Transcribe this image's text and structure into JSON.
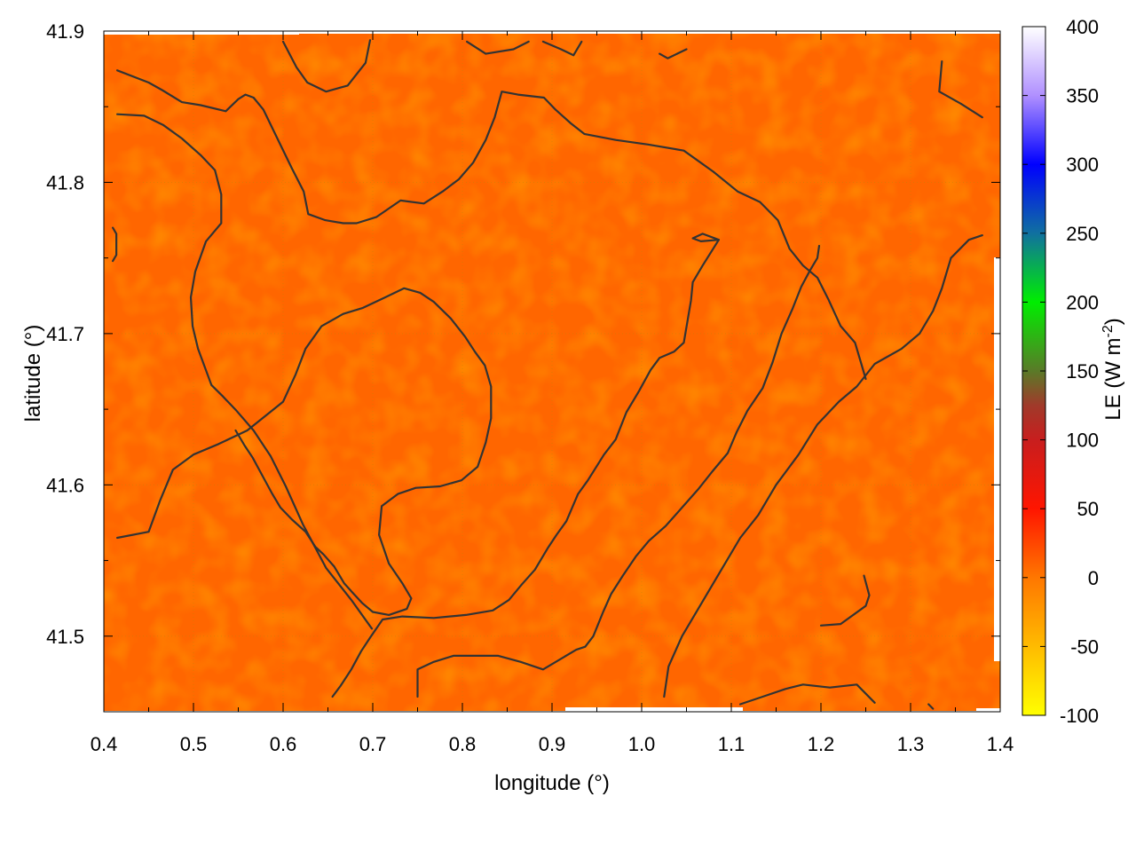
{
  "chart_data": {
    "type": "heatmap",
    "title": "",
    "xlabel": "longitude (°)",
    "ylabel": "latitude (°)",
    "xlim": [
      0.4,
      1.4
    ],
    "ylim": [
      41.45,
      41.9
    ],
    "x_ticks": [
      {
        "value": 0.4,
        "label": "0.4"
      },
      {
        "value": 0.5,
        "label": "0.5"
      },
      {
        "value": 0.6,
        "label": "0.6"
      },
      {
        "value": 0.7,
        "label": "0.7"
      },
      {
        "value": 0.8,
        "label": "0.8"
      },
      {
        "value": 0.9,
        "label": "0.9"
      },
      {
        "value": 1.0,
        "label": "1.0"
      },
      {
        "value": 1.1,
        "label": "1.1"
      },
      {
        "value": 1.2,
        "label": "1.2"
      },
      {
        "value": 1.3,
        "label": "1.3"
      },
      {
        "value": 1.4,
        "label": "1.4"
      }
    ],
    "y_ticks": [
      {
        "value": 41.5,
        "label": "41.5"
      },
      {
        "value": 41.6,
        "label": "41.6"
      },
      {
        "value": 41.7,
        "label": "41.7"
      },
      {
        "value": 41.8,
        "label": "41.8"
      },
      {
        "value": 41.9,
        "label": "41.9"
      }
    ],
    "grid": true,
    "colorbar": {
      "label_main": "LE (W m",
      "label_exp": "-2",
      "label_close": ")",
      "range": [
        -100,
        400
      ],
      "ticks": [
        {
          "value": 400,
          "label": "400"
        },
        {
          "value": 350,
          "label": "350"
        },
        {
          "value": 300,
          "label": "300"
        },
        {
          "value": 250,
          "label": "250"
        },
        {
          "value": 200,
          "label": "200"
        },
        {
          "value": 150,
          "label": "150"
        },
        {
          "value": 100,
          "label": "100"
        },
        {
          "value": 50,
          "label": "50"
        },
        {
          "value": 0,
          "label": "0"
        },
        {
          "value": -50,
          "label": "-50"
        },
        {
          "value": -100,
          "label": "-100"
        }
      ],
      "stops": [
        {
          "value": -100,
          "color": "#ffff00"
        },
        {
          "value": -50,
          "color": "#ffbb00"
        },
        {
          "value": 0,
          "color": "#ff7700"
        },
        {
          "value": 50,
          "color": "#ff1500"
        },
        {
          "value": 100,
          "color": "#c81e1e"
        },
        {
          "value": 125,
          "color": "#a03a2a"
        },
        {
          "value": 150,
          "color": "#5a7a28"
        },
        {
          "value": 200,
          "color": "#00ee00"
        },
        {
          "value": 250,
          "color": "#1070a0"
        },
        {
          "value": 300,
          "color": "#0000ff"
        },
        {
          "value": 350,
          "color": "#b090ff"
        },
        {
          "value": 400,
          "color": "#ffffff"
        }
      ]
    },
    "field": {
      "typical_value": 10,
      "range": [
        0,
        25
      ],
      "base_color": "#ff6600"
    },
    "contours": [
      [
        [
          0.415,
          41.874
        ],
        [
          0.45,
          41.866
        ],
        [
          0.465,
          41.861
        ],
        [
          0.487,
          41.853
        ],
        [
          0.508,
          41.851
        ],
        [
          0.536,
          41.847
        ],
        [
          0.55,
          41.855
        ],
        [
          0.558,
          41.858
        ],
        [
          0.567,
          41.856
        ],
        [
          0.578,
          41.848
        ],
        [
          0.596,
          41.826
        ],
        [
          0.61,
          41.809
        ],
        [
          0.623,
          41.794
        ],
        [
          0.628,
          41.779
        ],
        [
          0.647,
          41.775
        ],
        [
          0.667,
          41.773
        ],
        [
          0.682,
          41.773
        ],
        [
          0.704,
          41.777
        ],
        [
          0.731,
          41.788
        ],
        [
          0.757,
          41.786
        ],
        [
          0.778,
          41.794
        ],
        [
          0.796,
          41.802
        ],
        [
          0.812,
          41.813
        ],
        [
          0.826,
          41.828
        ],
        [
          0.836,
          41.843
        ],
        [
          0.844,
          41.86
        ],
        [
          0.862,
          41.858
        ],
        [
          0.891,
          41.856
        ],
        [
          0.904,
          41.848
        ],
        [
          0.921,
          41.839
        ],
        [
          0.936,
          41.832
        ],
        [
          0.971,
          41.828
        ],
        [
          1.007,
          41.825
        ],
        [
          1.047,
          41.821
        ],
        [
          1.08,
          41.807
        ],
        [
          1.107,
          41.794
        ],
        [
          1.132,
          41.787
        ],
        [
          1.152,
          41.775
        ],
        [
          1.165,
          41.756
        ],
        [
          1.18,
          41.745
        ],
        [
          1.196,
          41.737
        ],
        [
          1.208,
          41.723
        ],
        [
          1.222,
          41.705
        ],
        [
          1.238,
          41.694
        ],
        [
          1.245,
          41.68
        ],
        [
          1.25,
          41.67
        ]
      ],
      [
        [
          0.415,
          41.845
        ],
        [
          0.445,
          41.844
        ],
        [
          0.466,
          41.838
        ],
        [
          0.487,
          41.829
        ],
        [
          0.508,
          41.818
        ],
        [
          0.524,
          41.808
        ],
        [
          0.531,
          41.792
        ],
        [
          0.531,
          41.773
        ],
        [
          0.514,
          41.761
        ],
        [
          0.502,
          41.741
        ],
        [
          0.497,
          41.724
        ],
        [
          0.499,
          41.705
        ],
        [
          0.505,
          41.69
        ],
        [
          0.52,
          41.666
        ],
        [
          0.532,
          41.659
        ],
        [
          0.548,
          41.649
        ],
        [
          0.567,
          41.636
        ],
        [
          0.586,
          41.619
        ],
        [
          0.603,
          41.599
        ],
        [
          0.622,
          41.574
        ],
        [
          0.648,
          41.545
        ],
        [
          0.676,
          41.524
        ],
        [
          0.699,
          41.505
        ]
      ],
      [
        [
          0.415,
          41.565
        ],
        [
          0.45,
          41.569
        ],
        [
          0.463,
          41.59
        ],
        [
          0.477,
          41.61
        ],
        [
          0.5,
          41.62
        ],
        [
          0.528,
          41.627
        ],
        [
          0.56,
          41.636
        ],
        [
          0.579,
          41.645
        ],
        [
          0.6,
          41.655
        ],
        [
          0.614,
          41.673
        ],
        [
          0.625,
          41.69
        ],
        [
          0.643,
          41.705
        ],
        [
          0.667,
          41.713
        ],
        [
          0.689,
          41.717
        ],
        [
          0.714,
          41.724
        ],
        [
          0.735,
          41.73
        ],
        [
          0.753,
          41.727
        ],
        [
          0.768,
          41.721
        ],
        [
          0.787,
          41.71
        ],
        [
          0.803,
          41.698
        ],
        [
          0.814,
          41.688
        ],
        [
          0.825,
          41.679
        ],
        [
          0.832,
          41.665
        ],
        [
          0.832,
          41.644
        ],
        [
          0.826,
          41.628
        ],
        [
          0.817,
          41.612
        ],
        [
          0.799,
          41.603
        ],
        [
          0.775,
          41.599
        ],
        [
          0.748,
          41.598
        ],
        [
          0.728,
          41.594
        ],
        [
          0.71,
          41.586
        ],
        [
          0.707,
          41.567
        ],
        [
          0.718,
          41.548
        ],
        [
          0.733,
          41.535
        ],
        [
          0.743,
          41.525
        ],
        [
          0.738,
          41.518
        ],
        [
          0.718,
          41.514
        ],
        [
          0.7,
          41.516
        ],
        [
          0.688,
          41.522
        ],
        [
          0.677,
          41.529
        ],
        [
          0.668,
          41.535
        ],
        [
          0.657,
          41.546
        ],
        [
          0.645,
          41.554
        ],
        [
          0.636,
          41.559
        ],
        [
          0.625,
          41.569
        ],
        [
          0.61,
          41.577
        ],
        [
          0.597,
          41.585
        ],
        [
          0.587,
          41.595
        ],
        [
          0.576,
          41.607
        ],
        [
          0.566,
          41.618
        ],
        [
          0.557,
          41.626
        ],
        [
          0.547,
          41.636
        ]
      ],
      [
        [
          0.6,
          41.893
        ],
        [
          0.615,
          41.876
        ],
        [
          0.627,
          41.866
        ],
        [
          0.648,
          41.86
        ],
        [
          0.672,
          41.864
        ],
        [
          0.692,
          41.879
        ],
        [
          0.697,
          41.894
        ]
      ],
      [
        [
          0.805,
          41.893
        ],
        [
          0.826,
          41.885
        ],
        [
          0.857,
          41.888
        ],
        [
          0.874,
          41.893
        ]
      ],
      [
        [
          0.89,
          41.893
        ],
        [
          0.91,
          41.888
        ],
        [
          0.924,
          41.884
        ],
        [
          0.933,
          41.893
        ]
      ],
      [
        [
          1.02,
          41.885
        ],
        [
          1.029,
          41.882
        ],
        [
          1.05,
          41.888
        ]
      ],
      [
        [
          1.335,
          41.88
        ],
        [
          1.332,
          41.86
        ],
        [
          1.356,
          41.852
        ],
        [
          1.38,
          41.843
        ]
      ],
      [
        [
          0.41,
          41.77
        ],
        [
          0.414,
          41.766
        ],
        [
          0.414,
          41.752
        ],
        [
          0.41,
          41.748
        ]
      ],
      [
        [
          1.057,
          41.763
        ],
        [
          1.068,
          41.766
        ],
        [
          1.086,
          41.762
        ],
        [
          1.066,
          41.761
        ],
        [
          1.057,
          41.763
        ]
      ],
      [
        [
          0.75,
          41.46
        ],
        [
          0.75,
          41.478
        ],
        [
          0.768,
          41.483
        ],
        [
          0.79,
          41.487
        ],
        [
          0.84,
          41.487
        ],
        [
          0.865,
          41.483
        ],
        [
          0.89,
          41.478
        ],
        [
          0.91,
          41.485
        ],
        [
          0.927,
          41.491
        ],
        [
          0.937,
          41.493
        ],
        [
          0.946,
          41.5
        ],
        [
          0.957,
          41.516
        ],
        [
          0.966,
          41.528
        ],
        [
          0.979,
          41.54
        ],
        [
          0.994,
          41.553
        ],
        [
          1.008,
          41.563
        ],
        [
          1.027,
          41.573
        ],
        [
          1.045,
          41.585
        ],
        [
          1.063,
          41.597
        ],
        [
          1.079,
          41.609
        ],
        [
          1.096,
          41.621
        ],
        [
          1.106,
          41.635
        ],
        [
          1.118,
          41.649
        ],
        [
          1.135,
          41.664
        ],
        [
          1.146,
          41.681
        ],
        [
          1.156,
          41.7
        ],
        [
          1.168,
          41.716
        ],
        [
          1.178,
          41.731
        ],
        [
          1.188,
          41.742
        ],
        [
          1.196,
          41.75
        ],
        [
          1.198,
          41.758
        ]
      ],
      [
        [
          0.655,
          41.46
        ],
        [
          0.664,
          41.467
        ],
        [
          0.676,
          41.478
        ],
        [
          0.687,
          41.49
        ],
        [
          0.697,
          41.499
        ],
        [
          0.711,
          41.511
        ],
        [
          0.733,
          41.513
        ],
        [
          0.768,
          41.512
        ],
        [
          0.804,
          41.514
        ],
        [
          0.834,
          41.517
        ],
        [
          0.852,
          41.524
        ],
        [
          0.866,
          41.534
        ],
        [
          0.881,
          41.544
        ],
        [
          0.895,
          41.558
        ],
        [
          0.905,
          41.567
        ],
        [
          0.916,
          41.576
        ],
        [
          0.929,
          41.594
        ],
        [
          0.94,
          41.603
        ],
        [
          0.958,
          41.62
        ],
        [
          0.971,
          41.63
        ],
        [
          0.983,
          41.648
        ],
        [
          0.997,
          41.662
        ],
        [
          1.01,
          41.676
        ],
        [
          1.02,
          41.684
        ],
        [
          1.036,
          41.688
        ],
        [
          1.047,
          41.694
        ],
        [
          1.055,
          41.722
        ],
        [
          1.057,
          41.734
        ],
        [
          1.068,
          41.745
        ],
        [
          1.086,
          41.762
        ]
      ]
    ],
    "right_contours": [
      [
        [
          1.11,
          41.455
        ],
        [
          1.135,
          41.46
        ],
        [
          1.16,
          41.465
        ],
        [
          1.18,
          41.468
        ],
        [
          1.21,
          41.466
        ],
        [
          1.24,
          41.468
        ],
        [
          1.26,
          41.456
        ]
      ],
      [
        [
          1.2,
          41.507
        ],
        [
          1.222,
          41.508
        ],
        [
          1.25,
          41.52
        ],
        [
          1.254,
          41.527
        ],
        [
          1.248,
          41.54
        ]
      ],
      [
        [
          1.025,
          41.46
        ],
        [
          1.03,
          41.48
        ],
        [
          1.045,
          41.5
        ],
        [
          1.065,
          41.52
        ],
        [
          1.09,
          41.545
        ],
        [
          1.11,
          41.565
        ],
        [
          1.13,
          41.58
        ],
        [
          1.15,
          41.6
        ],
        [
          1.175,
          41.62
        ],
        [
          1.196,
          41.64
        ],
        [
          1.22,
          41.655
        ],
        [
          1.24,
          41.665
        ],
        [
          1.26,
          41.68
        ],
        [
          1.29,
          41.69
        ],
        [
          1.31,
          41.7
        ],
        [
          1.325,
          41.715
        ],
        [
          1.335,
          41.73
        ],
        [
          1.345,
          41.75
        ],
        [
          1.365,
          41.762
        ],
        [
          1.38,
          41.765
        ]
      ],
      [
        [
          1.32,
          41.455
        ],
        [
          1.325,
          41.452
        ]
      ]
    ]
  }
}
